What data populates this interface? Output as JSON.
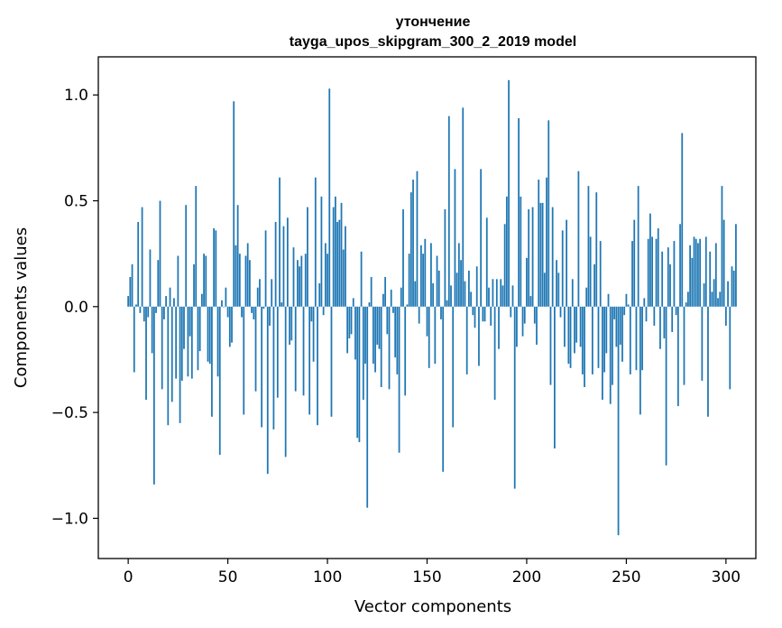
{
  "chart_data": {
    "type": "bar",
    "title_line1": "утончение",
    "title_line2": "tayga_upos_skipgram_300_2_2019 model",
    "xlabel": "Vector components",
    "ylabel": "Components values",
    "xlim": [
      -15,
      315
    ],
    "ylim": [
      -1.19,
      1.18
    ],
    "xticks": [
      0,
      50,
      100,
      150,
      200,
      250,
      300
    ],
    "xtick_labels": [
      "0",
      "50",
      "100",
      "150",
      "200",
      "250",
      "300"
    ],
    "yticks": [
      -1.0,
      -0.5,
      0.0,
      0.5,
      1.0
    ],
    "ytick_labels": [
      "−1.0",
      "−0.5",
      "0.0",
      "0.5",
      "1.0"
    ],
    "bar_color": "#1f77b4",
    "values": [
      0.05,
      0.14,
      0.2,
      -0.31,
      0.01,
      0.4,
      -0.03,
      0.47,
      -0.07,
      -0.44,
      -0.05,
      0.27,
      -0.22,
      -0.84,
      -0.03,
      0.22,
      0.5,
      -0.39,
      -0.06,
      0.05,
      -0.56,
      0.09,
      -0.45,
      0.04,
      -0.34,
      0.24,
      -0.55,
      -0.35,
      -0.2,
      0.48,
      -0.33,
      -0.14,
      -0.34,
      0.2,
      0.57,
      -0.3,
      -0.21,
      0.06,
      0.25,
      0.24,
      -0.26,
      -0.27,
      -0.52,
      0.37,
      0.36,
      -0.33,
      -0.7,
      0.03,
      0.0,
      0.09,
      -0.05,
      -0.19,
      -0.17,
      0.97,
      0.29,
      0.48,
      0.25,
      -0.05,
      -0.51,
      0.24,
      0.3,
      0.22,
      -0.03,
      -0.06,
      -0.4,
      0.09,
      0.13,
      -0.57,
      -0.01,
      0.36,
      -0.79,
      -0.09,
      0.13,
      -0.58,
      0.4,
      -0.43,
      0.61,
      0.02,
      0.38,
      -0.71,
      0.42,
      -0.18,
      -0.16,
      0.28,
      -0.4,
      0.22,
      0.19,
      0.24,
      -0.42,
      0.25,
      0.47,
      -0.51,
      -0.07,
      -0.26,
      0.61,
      -0.56,
      0.11,
      0.52,
      -0.04,
      0.3,
      0.25,
      1.03,
      -0.52,
      0.47,
      0.52,
      0.4,
      0.41,
      0.49,
      0.27,
      0.38,
      -0.22,
      -0.15,
      -0.13,
      0.04,
      -0.25,
      -0.62,
      -0.64,
      0.26,
      -0.44,
      -0.27,
      -0.95,
      0.02,
      0.14,
      -0.27,
      -0.31,
      -0.18,
      -0.2,
      -0.38,
      0.06,
      0.14,
      -0.13,
      -0.39,
      0.08,
      -0.03,
      -0.24,
      -0.32,
      -0.69,
      0.09,
      0.46,
      -0.42,
      0.01,
      0.25,
      0.54,
      0.6,
      0.12,
      0.64,
      -0.08,
      0.29,
      0.25,
      0.32,
      -0.14,
      -0.29,
      0.3,
      0.11,
      -0.27,
      0.24,
      0.17,
      -0.06,
      -0.78,
      0.46,
      0.03,
      0.9,
      0.1,
      -0.57,
      0.65,
      0.16,
      0.3,
      0.22,
      0.94,
      0.12,
      -0.32,
      0.17,
      0.07,
      -0.04,
      -0.1,
      0.19,
      -0.28,
      0.65,
      -0.07,
      -0.07,
      0.42,
      0.09,
      -0.09,
      0.13,
      -0.44,
      0.13,
      -0.2,
      0.13,
      0.1,
      0.39,
      0.52,
      1.07,
      -0.05,
      0.1,
      -0.86,
      -0.19,
      0.89,
      0.52,
      -0.14,
      -0.08,
      0.23,
      0.46,
      0.05,
      0.47,
      -0.08,
      -0.18,
      0.6,
      0.49,
      0.49,
      0.16,
      0.61,
      0.88,
      -0.37,
      0.47,
      -0.67,
      0.22,
      0.16,
      -0.05,
      0.36,
      -0.19,
      0.41,
      -0.27,
      -0.29,
      0.13,
      -0.22,
      -0.17,
      0.64,
      -0.19,
      -0.32,
      -0.38,
      0.09,
      0.57,
      0.33,
      -0.32,
      0.2,
      0.54,
      -0.29,
      0.31,
      -0.44,
      -0.31,
      -0.22,
      0.06,
      -0.46,
      -0.37,
      -0.06,
      -0.19,
      -1.08,
      -0.18,
      -0.26,
      -0.04,
      0.06,
      0.01,
      -0.32,
      0.31,
      0.41,
      -0.3,
      0.57,
      -0.51,
      -0.3,
      0.04,
      -0.07,
      0.32,
      0.44,
      0.33,
      -0.09,
      0.32,
      0.37,
      -0.2,
      0.26,
      -0.15,
      -0.75,
      0.28,
      0.2,
      -0.12,
      0.31,
      -0.04,
      -0.47,
      0.39,
      0.82,
      -0.37,
      0.02,
      0.07,
      0.29,
      0.23,
      0.33,
      0.32,
      0.3,
      0.32,
      -0.35,
      0.11,
      0.33,
      -0.52,
      0.26,
      0.07,
      0.13,
      0.3,
      0.04,
      0.07,
      0.57,
      0.41,
      -0.09,
      0.12,
      -0.39,
      0.19,
      0.17,
      0.39
    ]
  }
}
